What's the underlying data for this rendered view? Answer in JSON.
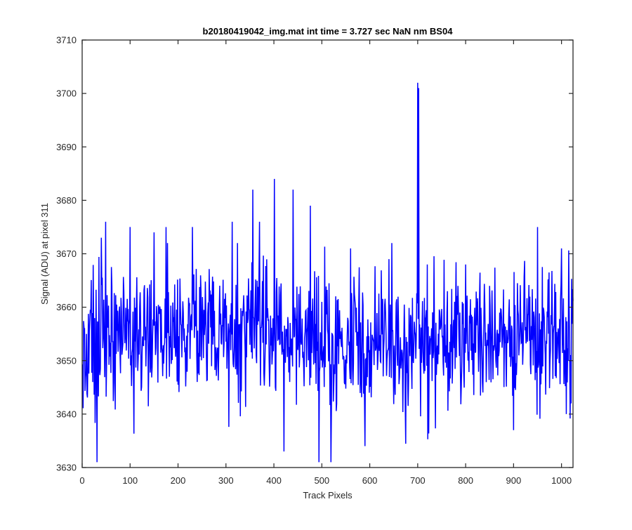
{
  "chart_data": {
    "type": "line",
    "title": "b20180419042_img.mat int time = 3.727 sec  NaN nm BS04",
    "xlabel": "Track Pixels",
    "ylabel": "Signal (ADU) at pixel 311",
    "xlim": [
      0,
      1024
    ],
    "ylim": [
      3630,
      3710
    ],
    "xticks": [
      0,
      100,
      200,
      300,
      400,
      500,
      600,
      700,
      800,
      900,
      1000
    ],
    "yticks": [
      3630,
      3640,
      3650,
      3660,
      3670,
      3680,
      3690,
      3700,
      3710
    ],
    "grid": false,
    "legend": "none",
    "colors": {
      "series": "#0000ff",
      "axes": "#262626",
      "background": "#ffffff"
    },
    "noise_model": {
      "mean": 3654,
      "spread_std": 6.5,
      "points": 1024
    },
    "series": [
      {
        "x_start": 1,
        "x_step": 1,
        "points": 1024,
        "notable_values": [
          [
            31,
            3631
          ],
          [
            40,
            3673
          ],
          [
            49,
            3676
          ],
          [
            100,
            3675
          ],
          [
            150,
            3674
          ],
          [
            175,
            3675
          ],
          [
            230,
            3675
          ],
          [
            313,
            3676
          ],
          [
            356,
            3682
          ],
          [
            370,
            3676
          ],
          [
            401,
            3684
          ],
          [
            421,
            3633
          ],
          [
            440,
            3682
          ],
          [
            476,
            3679
          ],
          [
            494,
            3631
          ],
          [
            519,
            3631
          ],
          [
            560,
            3671
          ],
          [
            590,
            3634
          ],
          [
            640,
            3669
          ],
          [
            700,
            3702
          ],
          [
            702,
            3701
          ],
          [
            720,
            3668
          ],
          [
            800,
            3668
          ],
          [
            900,
            3637
          ],
          [
            950,
            3675
          ],
          [
            1000,
            3671
          ],
          [
            1010,
            3640
          ],
          [
            1020,
            3642
          ]
        ]
      }
    ]
  }
}
